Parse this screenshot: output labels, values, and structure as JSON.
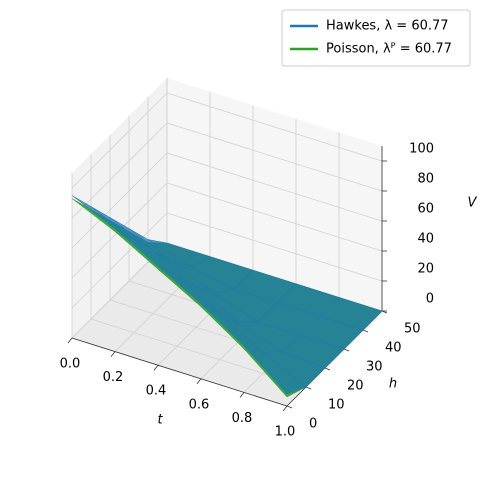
{
  "chart_data": {
    "type": "surface3d",
    "xlabel": "t",
    "ylabel": "h",
    "zlabel": "V",
    "x": [
      0,
      0.2,
      0.4,
      0.6,
      0.8,
      1.0
    ],
    "y": [
      0,
      10,
      20,
      30,
      40,
      50
    ],
    "xlim": [
      0,
      1
    ],
    "ylim": [
      0,
      50
    ],
    "zlim": [
      0,
      110
    ],
    "xticks": [
      {
        "value": 0,
        "label": "0.0"
      },
      0.2,
      0.4,
      0.6,
      0.8,
      {
        "value": 1,
        "label": "1.0"
      }
    ],
    "yticks": [
      0,
      10,
      20,
      30,
      40,
      50
    ],
    "zticks": [
      0,
      20,
      40,
      60,
      80,
      100
    ],
    "grid": true,
    "legend": "upper right",
    "series": [
      {
        "name": "Hawkes, λ = 60.77",
        "color": "#1f77b4",
        "values": [
          [
            95,
            75,
            55,
            35,
            15,
            0
          ],
          [
            82,
            62,
            42,
            22,
            6,
            0
          ],
          [
            66,
            46,
            27,
            10,
            0,
            0
          ],
          [
            50,
            31,
            12,
            0,
            0,
            0
          ],
          [
            31,
            14,
            2,
            0,
            0,
            0
          ],
          [
            8,
            0,
            0,
            0,
            0,
            0
          ]
        ]
      },
      {
        "name": "Poisson, λᴾ = 60.77",
        "color": "#2ca02c",
        "values": [
          [
            93,
            73,
            53,
            33,
            13,
            0
          ],
          [
            80,
            60,
            40,
            20,
            4,
            0
          ],
          [
            64,
            44,
            25,
            8,
            0,
            0
          ],
          [
            48,
            29,
            10,
            0,
            0,
            0
          ],
          [
            29,
            12,
            1,
            0,
            0,
            0
          ],
          [
            6,
            0,
            0,
            0,
            0,
            0
          ]
        ]
      }
    ]
  }
}
